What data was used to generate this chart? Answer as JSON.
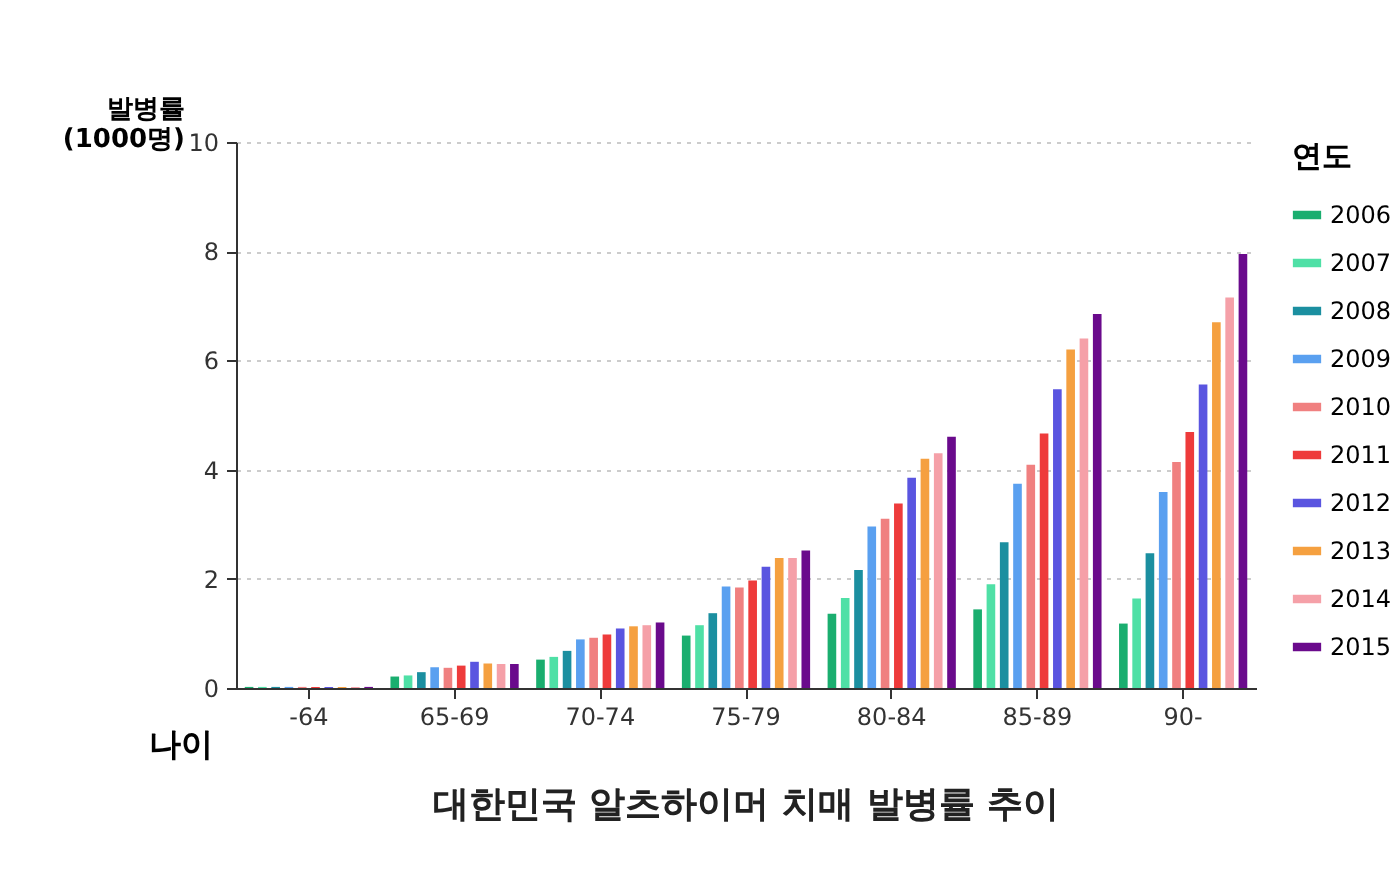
{
  "chart_data": {
    "type": "bar",
    "title": "대한민국 알츠하이머 치매 발병률 추이",
    "xlabel": "나이",
    "ylabel": "발병률\n(1000명)",
    "legend_title": "연도",
    "categories": [
      "-64",
      "65-69",
      "70-74",
      "75-79",
      "80-84",
      "85-89",
      "90-"
    ],
    "ylim": [
      0,
      10
    ],
    "yticks": [
      0,
      2,
      4,
      6,
      8,
      10
    ],
    "grid": "y",
    "legend": "right",
    "series": [
      {
        "name": "2006",
        "color": "#1aae6f",
        "values": [
          0.02,
          0.21,
          0.52,
          0.96,
          1.36,
          1.44,
          1.18
        ]
      },
      {
        "name": "2007",
        "color": "#4fe0a6",
        "values": [
          0.02,
          0.23,
          0.57,
          1.15,
          1.65,
          1.9,
          1.64
        ]
      },
      {
        "name": "2008",
        "color": "#1b8fa0",
        "values": [
          0.02,
          0.29,
          0.68,
          1.37,
          2.16,
          2.67,
          2.47
        ]
      },
      {
        "name": "2009",
        "color": "#5aa0f0",
        "values": [
          0.02,
          0.38,
          0.89,
          1.86,
          2.96,
          3.74,
          3.59
        ]
      },
      {
        "name": "2010",
        "color": "#f08080",
        "values": [
          0.02,
          0.37,
          0.92,
          1.84,
          3.1,
          4.09,
          4.14
        ]
      },
      {
        "name": "2011",
        "color": "#ee3b3b",
        "values": [
          0.02,
          0.41,
          0.98,
          1.97,
          3.38,
          4.66,
          4.69
        ]
      },
      {
        "name": "2012",
        "color": "#5a55e0",
        "values": [
          0.02,
          0.48,
          1.09,
          2.22,
          3.85,
          5.47,
          5.56
        ]
      },
      {
        "name": "2013",
        "color": "#f5a040",
        "values": [
          0.02,
          0.45,
          1.13,
          2.38,
          4.2,
          6.2,
          6.7
        ]
      },
      {
        "name": "2014",
        "color": "#f5a0a8",
        "values": [
          0.02,
          0.44,
          1.15,
          2.38,
          4.3,
          6.4,
          7.15
        ]
      },
      {
        "name": "2015",
        "color": "#6a0a8c",
        "values": [
          0.02,
          0.44,
          1.2,
          2.52,
          4.6,
          6.85,
          7.95
        ]
      }
    ]
  }
}
